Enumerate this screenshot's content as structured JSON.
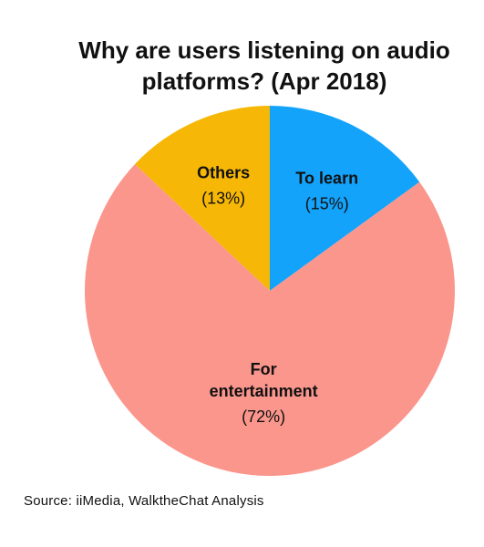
{
  "chart_data": {
    "type": "pie",
    "title_lines": [
      "Why are users listening on audio",
      "platforms? (Apr 2018)"
    ],
    "slices": [
      {
        "label_lines": [
          "To learn"
        ],
        "pct_text": "(15%)",
        "value": 15,
        "color": "#13a3fb"
      },
      {
        "label_lines": [
          "For",
          "entertainment"
        ],
        "pct_text": "(72%)",
        "value": 72,
        "color": "#fb968d"
      },
      {
        "label_lines": [
          "Others"
        ],
        "pct_text": "(13%)",
        "value": 13,
        "color": "#f6b706"
      }
    ],
    "start_angle_deg": 0,
    "direction": "clockwise"
  },
  "source": "Source: iiMedia, WalktheChat Analysis"
}
